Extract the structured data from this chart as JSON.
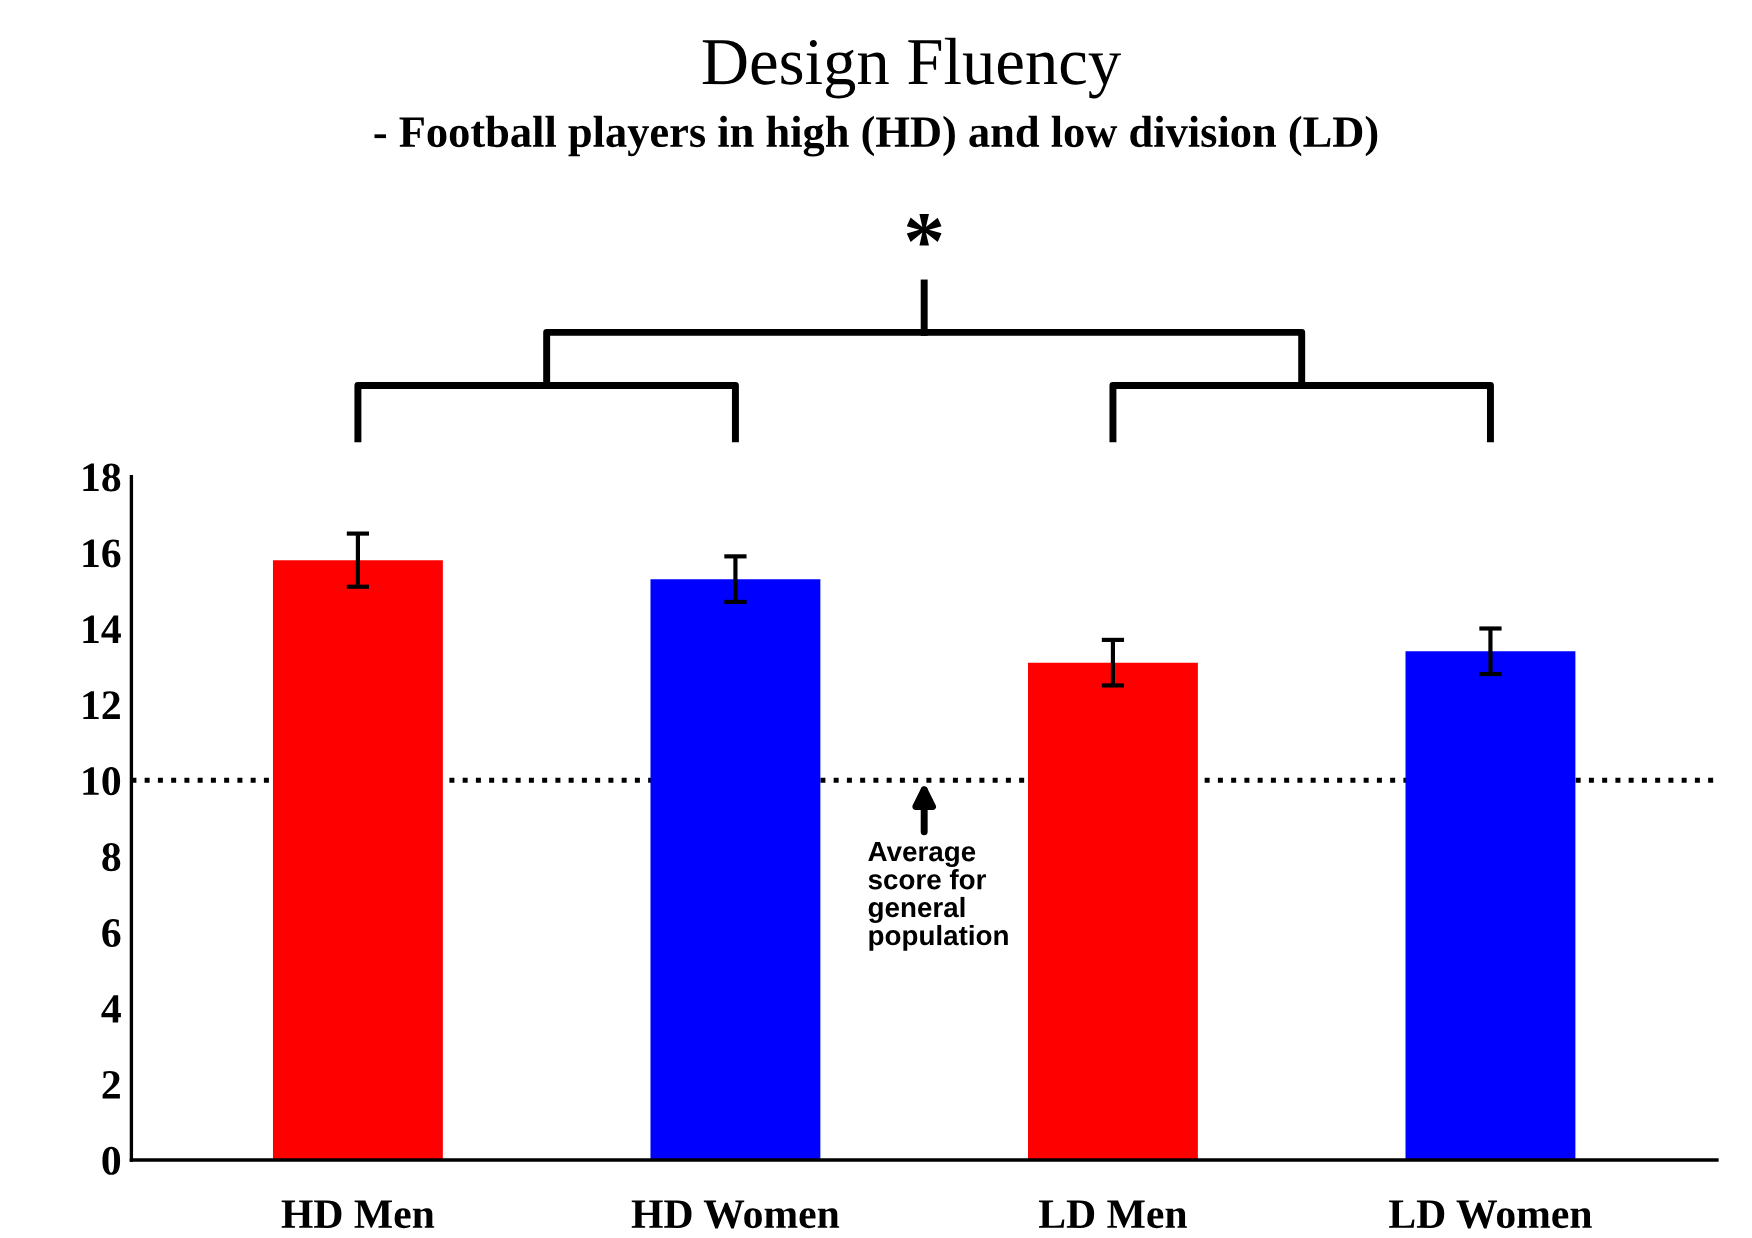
{
  "chart_data": {
    "type": "bar",
    "title": "Design Fluency",
    "subtitle": "- Football players in high (HD) and low division (LD)",
    "categories": [
      "HD Men",
      "HD Women",
      "LD Men",
      "LD Women"
    ],
    "values": [
      15.8,
      15.3,
      13.1,
      13.4
    ],
    "colors": [
      "#ff0000",
      "#0000ff",
      "#ff0000",
      "#0000ff"
    ],
    "errors": [
      0.7,
      0.6,
      0.6,
      0.6
    ],
    "ylim": [
      0,
      18
    ],
    "yticks": [
      0,
      2,
      4,
      6,
      8,
      10,
      12,
      14,
      16,
      18
    ],
    "grid": false,
    "ref_lines": [
      {
        "axis": "y",
        "value": 10,
        "label": "Average score for general population",
        "color": "#000000",
        "line_style": "dotted"
      }
    ],
    "annotations": [
      "*"
    ]
  }
}
